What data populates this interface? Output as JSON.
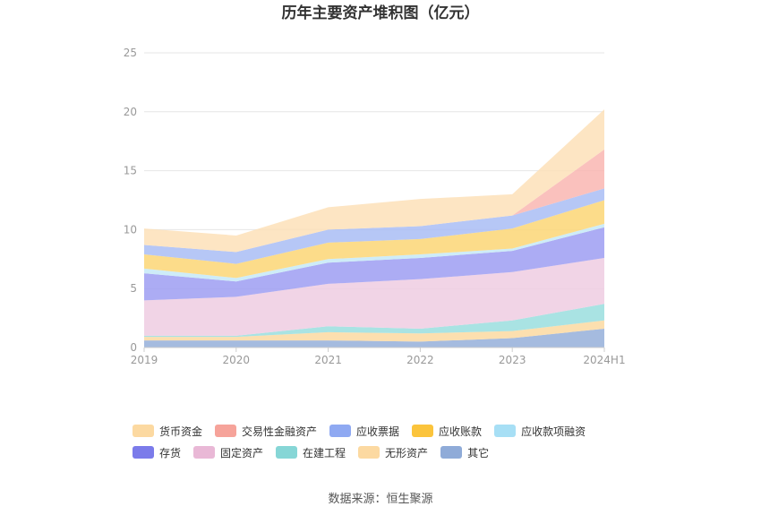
{
  "chart_data": {
    "type": "area",
    "stacked": true,
    "title": "历年主要资产堆积图（亿元）",
    "categories": [
      "2019",
      "2020",
      "2021",
      "2022",
      "2023",
      "2024H1"
    ],
    "ylim": [
      0,
      25
    ],
    "yticks": [
      0,
      5,
      10,
      15,
      20,
      25
    ],
    "grid": true,
    "legend_position": "bottom",
    "series": [
      {
        "name": "其它",
        "color": "#95afd9",
        "values": [
          0.6,
          0.6,
          0.6,
          0.5,
          0.8,
          1.6
        ]
      },
      {
        "name": "无形资产",
        "color": "#fcd9a1",
        "values": [
          0.3,
          0.3,
          0.7,
          0.7,
          0.6,
          0.7
        ]
      },
      {
        "name": "在建工程",
        "color": "#9adede",
        "values": [
          0.1,
          0.1,
          0.5,
          0.4,
          0.9,
          1.4
        ]
      },
      {
        "name": "固定资产",
        "color": "#efcde2",
        "values": [
          3.0,
          3.3,
          3.6,
          4.2,
          4.1,
          3.9
        ]
      },
      {
        "name": "存货",
        "color": "#9d9df2",
        "values": [
          2.3,
          1.3,
          1.8,
          1.8,
          1.8,
          2.6
        ]
      },
      {
        "name": "应收款项融资",
        "color": "#c6e9f7",
        "values": [
          0.4,
          0.3,
          0.3,
          0.3,
          0.2,
          0.3
        ]
      },
      {
        "name": "应收账款",
        "color": "#fbd675",
        "values": [
          1.2,
          1.2,
          1.4,
          1.3,
          1.7,
          2.0
        ]
      },
      {
        "name": "应收票据",
        "color": "#a9bdf5",
        "values": [
          0.8,
          1.0,
          1.1,
          1.1,
          1.1,
          1.0
        ]
      },
      {
        "name": "交易性金融资产",
        "color": "#f9b6b2",
        "values": [
          0,
          0,
          0,
          0,
          0,
          3.3
        ]
      },
      {
        "name": "货币资金",
        "color": "#fde0b8",
        "values": [
          1.4,
          1.4,
          1.9,
          2.3,
          1.8,
          3.4
        ]
      }
    ]
  },
  "legend": [
    {
      "label": "货币资金",
      "color": "#fcd9a1"
    },
    {
      "label": "交易性金融资产",
      "color": "#f6a39a"
    },
    {
      "label": "应收票据",
      "color": "#8fa9f2"
    },
    {
      "label": "应收账款",
      "color": "#fbc43c"
    },
    {
      "label": "应收款项融资",
      "color": "#a7dff5"
    },
    {
      "label": "存货",
      "color": "#7b7bea"
    },
    {
      "label": "固定资产",
      "color": "#e9b8d6"
    },
    {
      "label": "在建工程",
      "color": "#86d6d6"
    },
    {
      "label": "无形资产",
      "color": "#fcd9a1"
    },
    {
      "label": "其它",
      "color": "#8fabd8"
    }
  ],
  "source": "数据来源：恒生聚源"
}
